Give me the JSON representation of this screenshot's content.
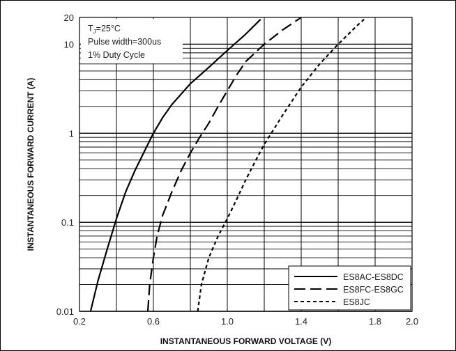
{
  "chart_data": {
    "type": "line",
    "xlabel": "INSTANTANEOUS FORWARD VOLTAGE (V)",
    "ylabel": "INSTANTANEOUS FORWARD CURRENT (A)",
    "xlim": [
      0.2,
      2.0
    ],
    "ylim": [
      0.01,
      20
    ],
    "yscale": "log",
    "grid": true,
    "legend_position": "bottom-right",
    "x_ticks": [
      {
        "v": 0.2,
        "label": "0.2"
      },
      {
        "v": 0.6,
        "label": "0.6"
      },
      {
        "v": 1.0,
        "label": "1.0"
      },
      {
        "v": 1.4,
        "label": "1.4"
      },
      {
        "v": 1.8,
        "label": "1.8"
      },
      {
        "v": 2.0,
        "label": "2.0"
      }
    ],
    "y_ticks": [
      {
        "v": 0.01,
        "label": "0.01"
      },
      {
        "v": 0.1,
        "label": "0.1"
      },
      {
        "v": 1,
        "label": "1"
      },
      {
        "v": 10,
        "label": "10"
      },
      {
        "v": 20,
        "label": "20"
      }
    ],
    "annotation": {
      "tj_base": "T",
      "tj_sub": "J",
      "tj_rest": "=25°C",
      "line2": "Pulse width=300us",
      "line3": "1% Duty Cycle"
    },
    "series": [
      {
        "name": "ES8AC-ES8DC",
        "style": "solid",
        "points": [
          [
            0.26,
            0.01
          ],
          [
            0.3,
            0.022
          ],
          [
            0.35,
            0.05
          ],
          [
            0.4,
            0.11
          ],
          [
            0.45,
            0.22
          ],
          [
            0.5,
            0.38
          ],
          [
            0.55,
            0.62
          ],
          [
            0.6,
            1.0
          ],
          [
            0.65,
            1.5
          ],
          [
            0.7,
            2.1
          ],
          [
            0.8,
            3.6
          ],
          [
            0.9,
            5.5
          ],
          [
            1.0,
            8.5
          ],
          [
            1.1,
            13
          ],
          [
            1.18,
            19
          ]
        ]
      },
      {
        "name": "ES8FC-ES8GC",
        "style": "dashed",
        "points": [
          [
            0.57,
            0.01
          ],
          [
            0.58,
            0.02
          ],
          [
            0.6,
            0.04
          ],
          [
            0.62,
            0.07
          ],
          [
            0.65,
            0.12
          ],
          [
            0.7,
            0.22
          ],
          [
            0.75,
            0.38
          ],
          [
            0.8,
            0.6
          ],
          [
            0.85,
            0.9
          ],
          [
            0.9,
            1.3
          ],
          [
            0.95,
            2.0
          ],
          [
            1.0,
            3.0
          ],
          [
            1.05,
            4.5
          ],
          [
            1.1,
            6.4
          ],
          [
            1.2,
            10
          ],
          [
            1.3,
            14.5
          ],
          [
            1.4,
            20
          ]
        ]
      },
      {
        "name": "ES8JC",
        "style": "dotted",
        "points": [
          [
            0.84,
            0.01
          ],
          [
            0.86,
            0.02
          ],
          [
            0.9,
            0.04
          ],
          [
            0.95,
            0.07
          ],
          [
            1.0,
            0.11
          ],
          [
            1.05,
            0.18
          ],
          [
            1.1,
            0.3
          ],
          [
            1.15,
            0.48
          ],
          [
            1.2,
            0.75
          ],
          [
            1.3,
            1.6
          ],
          [
            1.4,
            3.3
          ],
          [
            1.5,
            6.0
          ],
          [
            1.6,
            10
          ],
          [
            1.7,
            16
          ],
          [
            1.74,
            19
          ]
        ]
      }
    ]
  }
}
